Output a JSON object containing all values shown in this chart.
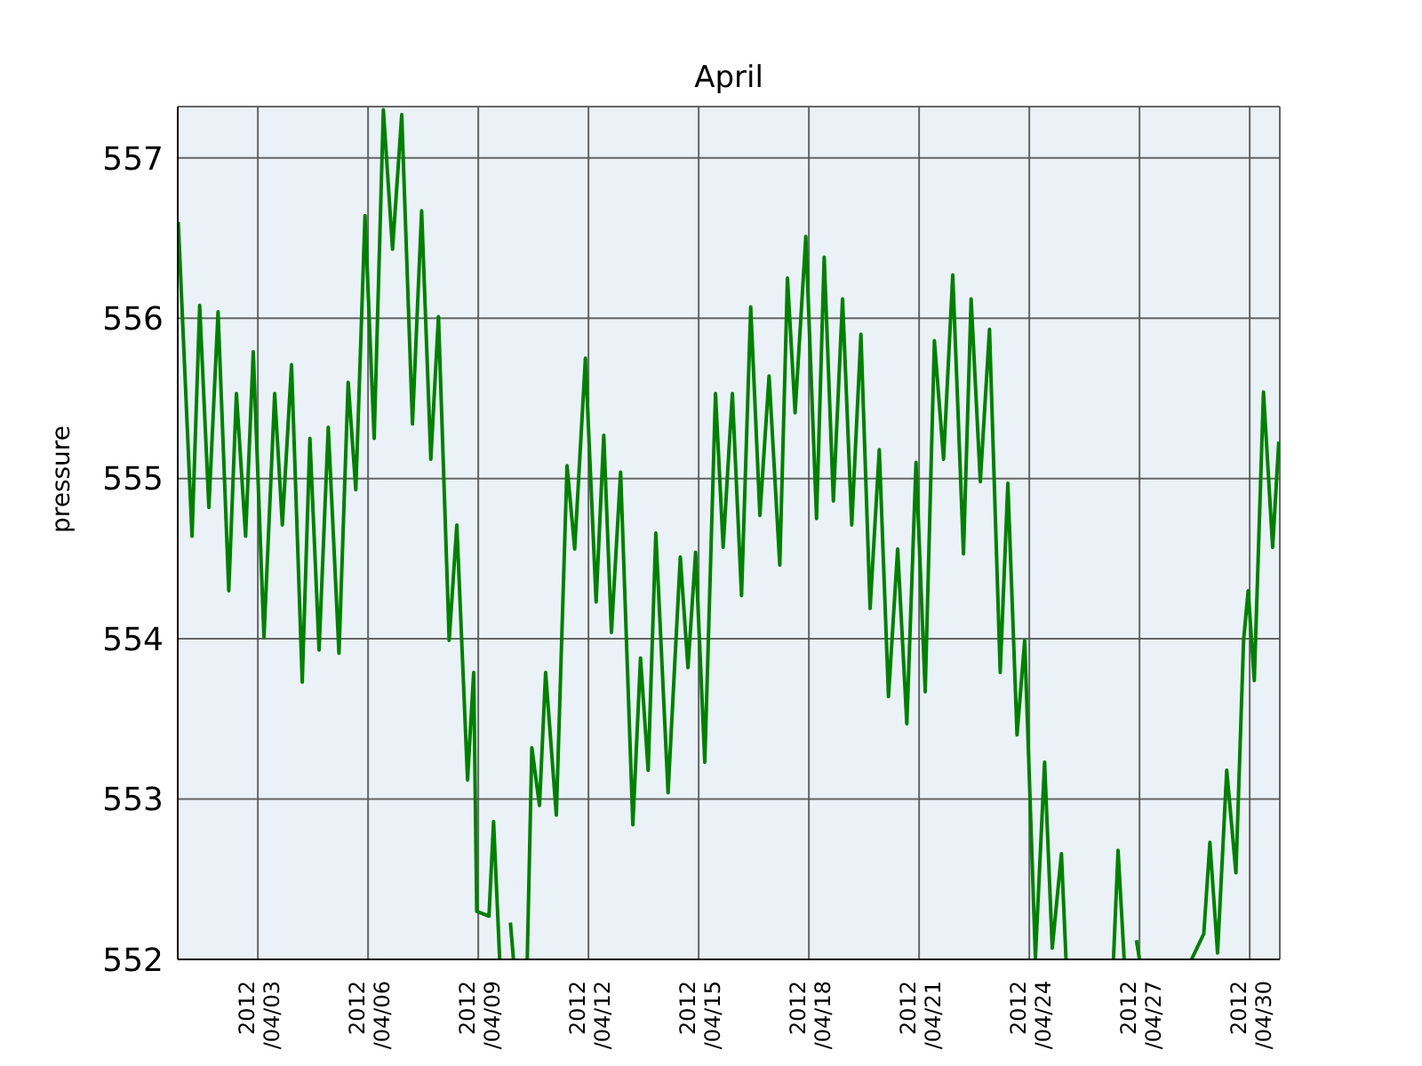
{
  "chart_data": {
    "type": "line",
    "title": "April",
    "ylabel": "pressure",
    "xlim": [
      "2012-03-31T19:40",
      "2012-04-30T19:40"
    ],
    "xticks": [
      {
        "value": "2012-04-03",
        "label": "2012\n/04/03"
      },
      {
        "value": "2012-04-06",
        "label": "2012\n/04/06"
      },
      {
        "value": "2012-04-09",
        "label": "2012\n/04/09"
      },
      {
        "value": "2012-04-12",
        "label": "2012\n/04/12"
      },
      {
        "value": "2012-04-15",
        "label": "2012\n/04/15"
      },
      {
        "value": "2012-04-18",
        "label": "2012\n/04/18"
      },
      {
        "value": "2012-04-21",
        "label": "2012\n/04/21"
      },
      {
        "value": "2012-04-24",
        "label": "2012\n/04/24"
      },
      {
        "value": "2012-04-27",
        "label": "2012\n/04/27"
      },
      {
        "value": "2012-04-30",
        "label": "2012\n/04/30"
      }
    ],
    "ylim": [
      552,
      557.32
    ],
    "yticks": [
      552,
      553,
      554,
      555,
      556,
      557
    ],
    "grid": true,
    "x": [
      "2012-03-31T20:00",
      "2012-04-01T05:00",
      "2012-04-01T10:00",
      "2012-04-01T16:00",
      "2012-04-01T22:00",
      "2012-04-02T05:00",
      "2012-04-02T10:00",
      "2012-04-02T16:00",
      "2012-04-02T21:00",
      "2012-04-03T04:00",
      "2012-04-03T11:00",
      "2012-04-03T16:00",
      "2012-04-03T22:00",
      "2012-04-04T05:00",
      "2012-04-04T10:00",
      "2012-04-04T16:00",
      "2012-04-04T22:00",
      "2012-04-05T05:00",
      "2012-04-05T11:00",
      "2012-04-05T16:00",
      "2012-04-05T22:00",
      "2012-04-06T04:00",
      "2012-04-06T10:00",
      "2012-04-06T16:00",
      "2012-04-06T22:00",
      "2012-04-07T05:00",
      "2012-04-07T11:00",
      "2012-04-07T17:00",
      "2012-04-07T22:00",
      "2012-04-08T05:00",
      "2012-04-08T10:00",
      "2012-04-08T17:00",
      "2012-04-08T21:00",
      "2012-04-08T23:00",
      "2012-04-09T07:00",
      "2012-04-09T10:00",
      "2012-04-09T14:00",
      "2012-04-09T17:00",
      "2012-04-09T21:00",
      "2012-04-09T23:00",
      "2012-04-10T04:00",
      "2012-04-10T08:00",
      "2012-04-10T11:00",
      "2012-04-10T16:00",
      "2012-04-10T20:00",
      "2012-04-11T03:00",
      "2012-04-11T10:00",
      "2012-04-11T15:00",
      "2012-04-11T22:00",
      "2012-04-12T05:00",
      "2012-04-12T10:00",
      "2012-04-12T15:00",
      "2012-04-12T21:00",
      "2012-04-13T05:00",
      "2012-04-13T10:00",
      "2012-04-13T15:00",
      "2012-04-13T20:00",
      "2012-04-14T04:00",
      "2012-04-14T12:00",
      "2012-04-14T17:00",
      "2012-04-14T22:00",
      "2012-04-15T04:00",
      "2012-04-15T11:00",
      "2012-04-15T16:00",
      "2012-04-15T22:00",
      "2012-04-16T04:00",
      "2012-04-16T10:00",
      "2012-04-16T16:00",
      "2012-04-16T22:00",
      "2012-04-17T05:00",
      "2012-04-17T10:00",
      "2012-04-17T15:00",
      "2012-04-17T22:00",
      "2012-04-18T05:00",
      "2012-04-18T10:00",
      "2012-04-18T16:00",
      "2012-04-18T22:00",
      "2012-04-19T04:00",
      "2012-04-19T10:00",
      "2012-04-19T16:00",
      "2012-04-19T22:00",
      "2012-04-20T04:00",
      "2012-04-20T10:00",
      "2012-04-20T16:00",
      "2012-04-20T22:00",
      "2012-04-21T04:00",
      "2012-04-21T10:00",
      "2012-04-21T16:00",
      "2012-04-21T22:00",
      "2012-04-22T05:00",
      "2012-04-22T10:00",
      "2012-04-22T16:00",
      "2012-04-22T22:00",
      "2012-04-23T05:00",
      "2012-04-23T10:00",
      "2012-04-23T16:00",
      "2012-04-23T21:00",
      "2012-04-24T04:00",
      "2012-04-24T10:00",
      "2012-04-24T15:00",
      "2012-04-24T21:00",
      "2012-04-25T00:00",
      "2012-04-25T16:00",
      "2012-04-26T07:00",
      "2012-04-26T10:00",
      "2012-04-26T14:00",
      "2012-04-26T18:00",
      "2012-04-26T22:00",
      "2012-04-27T00:00",
      "2012-04-27T16:00",
      "2012-04-28T10:00",
      "2012-04-28T18:00",
      "2012-04-28T22:00",
      "2012-04-29T03:00",
      "2012-04-29T09:00",
      "2012-04-29T15:00",
      "2012-04-29T20:00",
      "2012-04-29T23:00",
      "2012-04-30T03:00",
      "2012-04-30T09:00",
      "2012-04-30T15:00",
      "2012-04-30T19:00"
    ],
    "series": [
      {
        "color": "#008000",
        "values": [
          556.6,
          554.64,
          556.08,
          554.82,
          556.04,
          554.3,
          555.53,
          554.64,
          555.79,
          554.01,
          555.53,
          554.71,
          555.71,
          553.73,
          555.25,
          553.93,
          555.32,
          553.91,
          555.6,
          554.93,
          556.64,
          555.25,
          557.3,
          556.43,
          557.27,
          555.34,
          556.67,
          555.12,
          556.01,
          553.99,
          554.71,
          553.12,
          553.79,
          552.3,
          552.27,
          552.86,
          552.0,
          null,
          552.23,
          552.0,
          null,
          552.0,
          553.32,
          552.96,
          553.79,
          552.9,
          555.08,
          554.56,
          555.75,
          554.23,
          555.27,
          554.04,
          555.04,
          552.84,
          553.88,
          553.18,
          554.66,
          553.04,
          554.51,
          553.82,
          554.54,
          553.23,
          555.53,
          554.57,
          555.53,
          554.27,
          556.07,
          554.77,
          555.64,
          554.46,
          556.25,
          555.41,
          556.51,
          554.75,
          556.38,
          554.86,
          556.12,
          554.71,
          555.9,
          554.19,
          555.18,
          553.64,
          554.56,
          553.47,
          555.1,
          553.67,
          555.86,
          555.12,
          556.27,
          554.53,
          556.12,
          554.98,
          555.93,
          553.79,
          554.97,
          553.4,
          553.99,
          552.01,
          553.23,
          552.07,
          552.66,
          552.0,
          null,
          552.0,
          552.68,
          552.0,
          null,
          552.12,
          552.0,
          null,
          552.0,
          552.16,
          552.73,
          552.04,
          553.18,
          552.54,
          553.99,
          554.3,
          553.74,
          555.54,
          554.57,
          555.23
        ]
      }
    ]
  }
}
